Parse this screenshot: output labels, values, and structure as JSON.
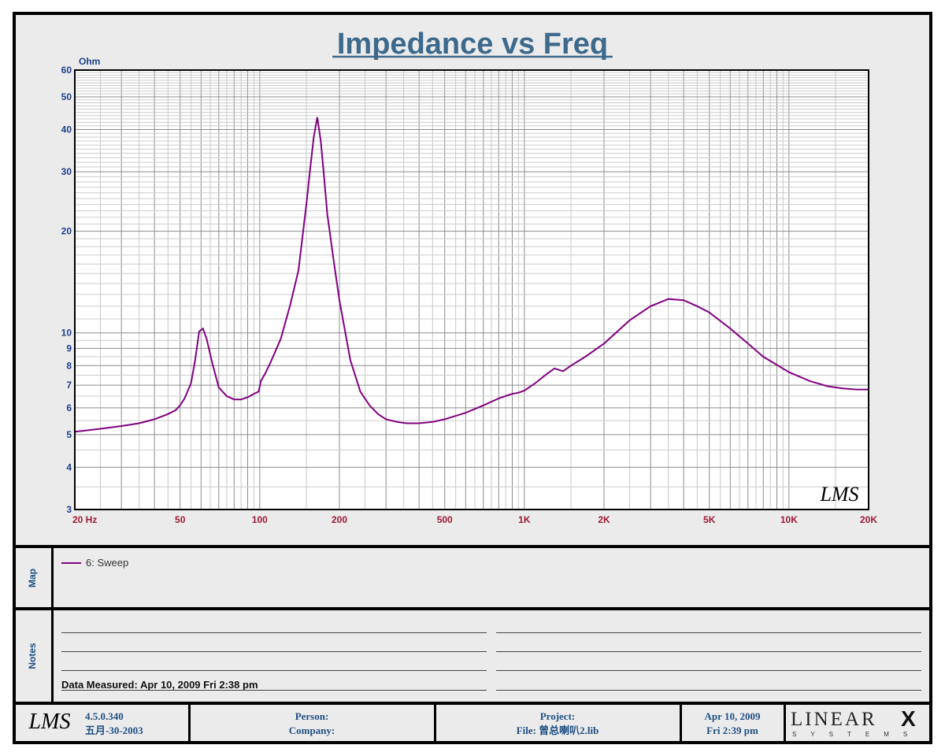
{
  "chart_data": {
    "type": "line",
    "title": "Impedance vs Freq",
    "ylabel": "Ohm",
    "xscale": "log",
    "yscale": "log",
    "xlim": [
      20,
      20000
    ],
    "ylim": [
      3,
      60
    ],
    "grid": true,
    "x_tick_labels": [
      {
        "value": 20,
        "label": "20  Hz"
      },
      {
        "value": 50,
        "label": "50"
      },
      {
        "value": 100,
        "label": "100"
      },
      {
        "value": 200,
        "label": "200"
      },
      {
        "value": 500,
        "label": "500"
      },
      {
        "value": 1000,
        "label": "1K"
      },
      {
        "value": 2000,
        "label": "2K"
      },
      {
        "value": 5000,
        "label": "5K"
      },
      {
        "value": 10000,
        "label": "10K"
      },
      {
        "value": 20000,
        "label": "20K"
      }
    ],
    "y_tick_labels": [
      {
        "value": 3,
        "label": "3"
      },
      {
        "value": 4,
        "label": "4"
      },
      {
        "value": 5,
        "label": "5"
      },
      {
        "value": 6,
        "label": "6"
      },
      {
        "value": 7,
        "label": "7"
      },
      {
        "value": 8,
        "label": "8"
      },
      {
        "value": 9,
        "label": "9"
      },
      {
        "value": 10,
        "label": "10"
      },
      {
        "value": 20,
        "label": "20"
      },
      {
        "value": 30,
        "label": "30"
      },
      {
        "value": 40,
        "label": "40"
      },
      {
        "value": 50,
        "label": "50"
      },
      {
        "value": 60,
        "label": "60"
      }
    ],
    "series": [
      {
        "name": "6: Sweep",
        "color": "#800080",
        "x": [
          20,
          25,
          30,
          35,
          40,
          45,
          48,
          50,
          52,
          55,
          57,
          59,
          61,
          63,
          66,
          70,
          75,
          80,
          85,
          90,
          95,
          99,
          101,
          105,
          110,
          120,
          130,
          140,
          150,
          155,
          160,
          165,
          170,
          175,
          180,
          190,
          200,
          220,
          240,
          260,
          280,
          300,
          330,
          360,
          400,
          450,
          500,
          600,
          700,
          800,
          900,
          950,
          1000,
          1100,
          1200,
          1300,
          1400,
          1500,
          1700,
          2000,
          2500,
          3000,
          3500,
          4000,
          4500,
          5000,
          6000,
          7000,
          8000,
          10000,
          12000,
          14000,
          16000,
          18000,
          20000
        ],
        "y": [
          5.1,
          5.2,
          5.3,
          5.4,
          5.55,
          5.75,
          5.9,
          6.1,
          6.4,
          7.1,
          8.3,
          10.1,
          10.3,
          9.6,
          8.2,
          6.9,
          6.5,
          6.35,
          6.35,
          6.45,
          6.6,
          6.7,
          7.2,
          7.6,
          8.2,
          9.6,
          12.0,
          15.3,
          24.0,
          30.5,
          38.0,
          43.5,
          37.0,
          29.0,
          22.5,
          16.5,
          12.5,
          8.3,
          6.7,
          6.1,
          5.75,
          5.55,
          5.45,
          5.4,
          5.4,
          5.45,
          5.55,
          5.8,
          6.1,
          6.4,
          6.6,
          6.65,
          6.75,
          7.1,
          7.5,
          7.85,
          7.7,
          8.0,
          8.5,
          9.3,
          10.9,
          12.0,
          12.6,
          12.5,
          12.0,
          11.5,
          10.3,
          9.3,
          8.5,
          7.65,
          7.2,
          6.95,
          6.85,
          6.8,
          6.8
        ]
      }
    ]
  },
  "map": {
    "label": "Map",
    "legend_entry": "6: Sweep"
  },
  "notes": {
    "label": "Notes",
    "data_measured": "Data Measured: Apr 10, 2009  Fri  2:38 pm"
  },
  "footer": {
    "lms_logo": "LMS",
    "version": "4.5.0.340",
    "version_date": "五月-30-2003",
    "person_label": "Person:",
    "company_label": "Company:",
    "project_label": "Project:",
    "file_label": "File: 曾总喇叭2.lib",
    "date": "Apr 10, 2009",
    "time": "Fri  2:39 pm",
    "brand": "LINEAR",
    "brand_x": "X",
    "brand_sub": "SYSTEMS"
  },
  "watermark": "LMS"
}
